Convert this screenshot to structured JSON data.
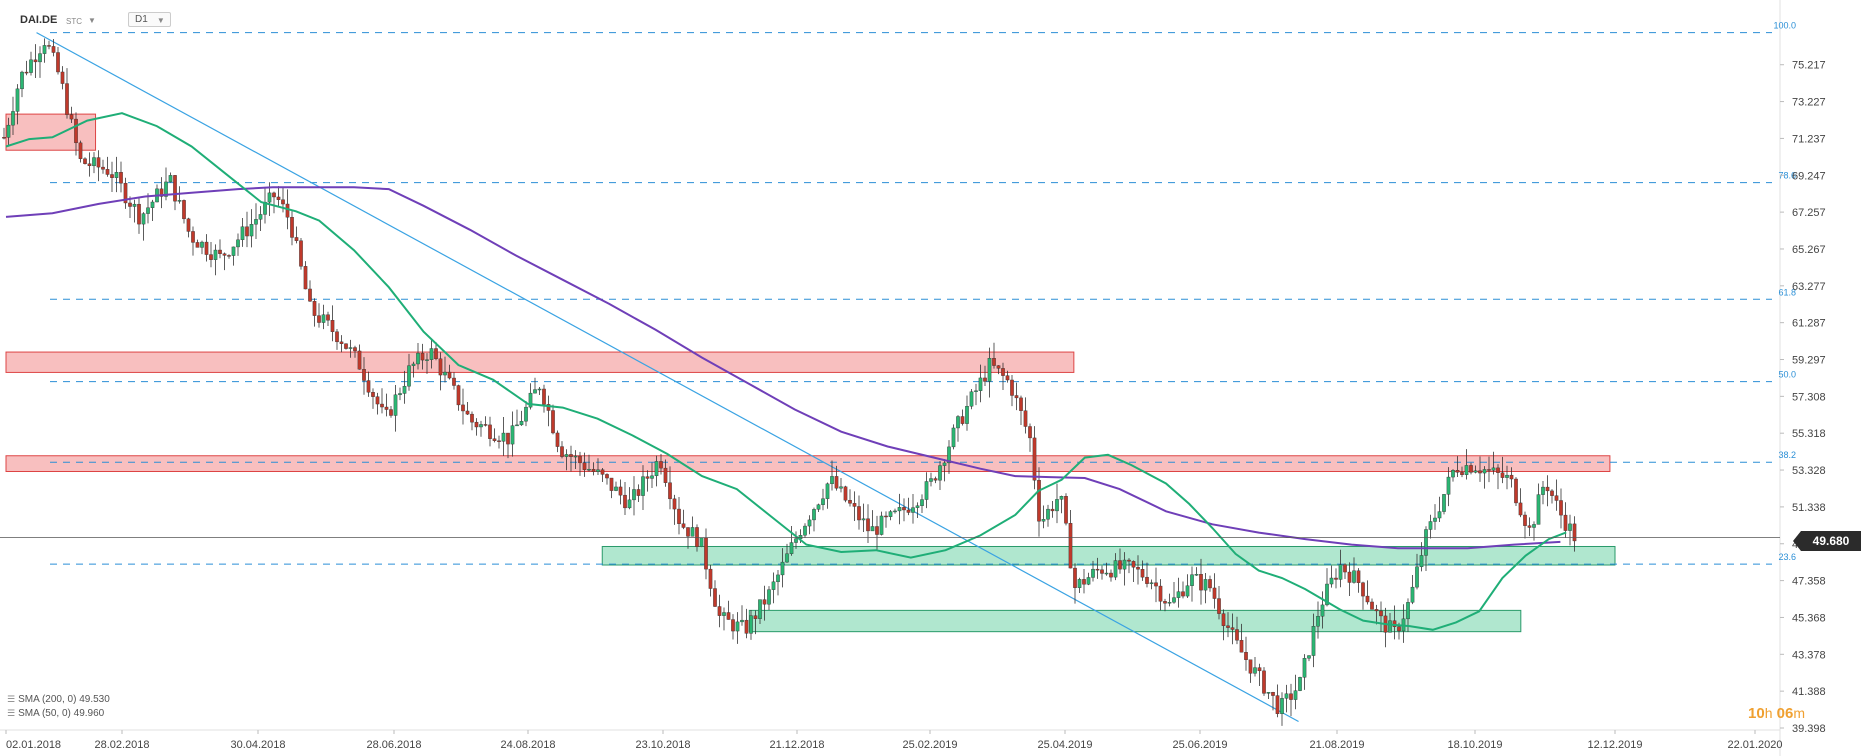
{
  "header": {
    "symbol": "DAI.DE",
    "source": "STC",
    "timeframe": "D1"
  },
  "legend": [
    {
      "label": "SMA (200, 0) 49.530",
      "color": "#6f3fb8"
    },
    {
      "label": "SMA (50, 0) 49.960",
      "color": "#1fae77"
    }
  ],
  "timer": {
    "hours": "10",
    "h": "h",
    "minutes": "06",
    "m": "m"
  },
  "last_price": "49.680",
  "colors": {
    "up": "#2bb673",
    "down": "#c0392b",
    "sma200": "#6f3fb8",
    "sma50": "#1fae77",
    "trendline": "#3aa3e3",
    "fib": "#2b8fd6",
    "supply": "#f28b8b",
    "demand": "#6fd3a8"
  },
  "chart_data": {
    "type": "candlestick",
    "ylim": [
      39.398,
      77.2
    ],
    "y_ticks": [
      "75.217",
      "73.227",
      "71.237",
      "69.247",
      "67.257",
      "65.267",
      "63.277",
      "61.287",
      "59.297",
      "57.308",
      "55.318",
      "53.328",
      "51.338",
      "49.348",
      "47.358",
      "45.368",
      "43.378",
      "41.388",
      "39.398"
    ],
    "x_ticks": [
      "02.01.2018",
      "28.02.2018",
      "30.04.2018",
      "28.06.2018",
      "24.08.2018",
      "23.10.2018",
      "21.12.2018",
      "25.02.2019",
      "25.04.2019",
      "25.06.2019",
      "21.08.2019",
      "18.10.2019",
      "12.12.2019",
      "22.01.2020"
    ],
    "fib_levels": [
      {
        "label": "100.0",
        "price": 76.95
      },
      {
        "label": "78.6",
        "price": 68.85
      },
      {
        "label": "61.8",
        "price": 62.55
      },
      {
        "label": "50.0",
        "price": 58.1
      },
      {
        "label": "38.2",
        "price": 53.75
      },
      {
        "label": "23.6",
        "price": 48.25
      }
    ],
    "last_price": 49.68,
    "zones": [
      {
        "type": "supply",
        "from": "02.01.2018",
        "to": "15.02.2018",
        "top": 72.55,
        "bottom": 70.6
      },
      {
        "type": "supply",
        "from": "02.01.2018",
        "to": "29.04.2019",
        "top": 59.7,
        "bottom": 58.6
      },
      {
        "type": "supply",
        "from": "02.01.2018",
        "to": "10.12.2019",
        "top": 54.1,
        "bottom": 53.25
      },
      {
        "type": "demand",
        "from": "26.09.2018",
        "to": "12.12.2019",
        "top": 49.2,
        "bottom": 48.2
      },
      {
        "type": "demand",
        "from": "30.11.2018",
        "to": "05.11.2019",
        "top": 45.75,
        "bottom": 44.6
      }
    ],
    "trendline": {
      "from": [
        "17.01.2018",
        76.95
      ],
      "to": [
        "05.08.2019",
        39.75
      ]
    },
    "sma200_path": [
      [
        0,
        67.0
      ],
      [
        40,
        67.2
      ],
      [
        80,
        67.7
      ],
      [
        120,
        68.1
      ],
      [
        160,
        68.3
      ],
      [
        200,
        68.5
      ],
      [
        230,
        68.6
      ],
      [
        270,
        68.6
      ],
      [
        300,
        68.6
      ],
      [
        330,
        68.5
      ],
      [
        360,
        67.6
      ],
      [
        400,
        66.3
      ],
      [
        440,
        64.9
      ],
      [
        480,
        63.6
      ],
      [
        520,
        62.3
      ],
      [
        560,
        60.9
      ],
      [
        600,
        59.4
      ],
      [
        640,
        58.0
      ],
      [
        680,
        56.6
      ],
      [
        720,
        55.4
      ],
      [
        760,
        54.6
      ],
      [
        800,
        54.0
      ],
      [
        840,
        53.4
      ],
      [
        870,
        53.0
      ],
      [
        900,
        52.95
      ],
      [
        930,
        52.9
      ],
      [
        960,
        52.3
      ],
      [
        1000,
        51.1
      ],
      [
        1040,
        50.4
      ],
      [
        1080,
        49.95
      ],
      [
        1120,
        49.6
      ],
      [
        1160,
        49.3
      ],
      [
        1200,
        49.1
      ],
      [
        1260,
        49.1
      ],
      [
        1300,
        49.3
      ],
      [
        1340,
        49.45
      ]
    ],
    "sma50_path": [
      [
        0,
        70.8
      ],
      [
        20,
        71.2
      ],
      [
        40,
        71.3
      ],
      [
        70,
        72.2
      ],
      [
        100,
        72.6
      ],
      [
        130,
        71.9
      ],
      [
        160,
        70.8
      ],
      [
        190,
        69.3
      ],
      [
        220,
        67.8
      ],
      [
        250,
        67.3
      ],
      [
        270,
        66.8
      ],
      [
        300,
        65.2
      ],
      [
        330,
        63.2
      ],
      [
        360,
        60.8
      ],
      [
        390,
        59.0
      ],
      [
        420,
        58.2
      ],
      [
        450,
        56.9
      ],
      [
        480,
        56.7
      ],
      [
        510,
        56.1
      ],
      [
        540,
        55.2
      ],
      [
        570,
        54.2
      ],
      [
        600,
        53.0
      ],
      [
        630,
        52.3
      ],
      [
        660,
        50.8
      ],
      [
        690,
        49.3
      ],
      [
        720,
        48.9
      ],
      [
        750,
        49.0
      ],
      [
        780,
        48.6
      ],
      [
        810,
        49.0
      ],
      [
        840,
        49.8
      ],
      [
        870,
        50.9
      ],
      [
        890,
        52.2
      ],
      [
        910,
        52.8
      ],
      [
        930,
        54.0
      ],
      [
        950,
        54.15
      ],
      [
        970,
        53.6
      ],
      [
        1000,
        52.6
      ],
      [
        1020,
        51.5
      ],
      [
        1040,
        50.2
      ],
      [
        1060,
        48.8
      ],
      [
        1080,
        47.9
      ],
      [
        1100,
        47.5
      ],
      [
        1120,
        46.9
      ],
      [
        1150,
        45.8
      ],
      [
        1170,
        45.2
      ],
      [
        1190,
        45.0
      ],
      [
        1210,
        44.9
      ],
      [
        1230,
        44.7
      ],
      [
        1250,
        45.1
      ],
      [
        1270,
        45.7
      ],
      [
        1290,
        47.5
      ],
      [
        1310,
        48.7
      ],
      [
        1330,
        49.6
      ],
      [
        1345,
        49.96
      ]
    ]
  }
}
